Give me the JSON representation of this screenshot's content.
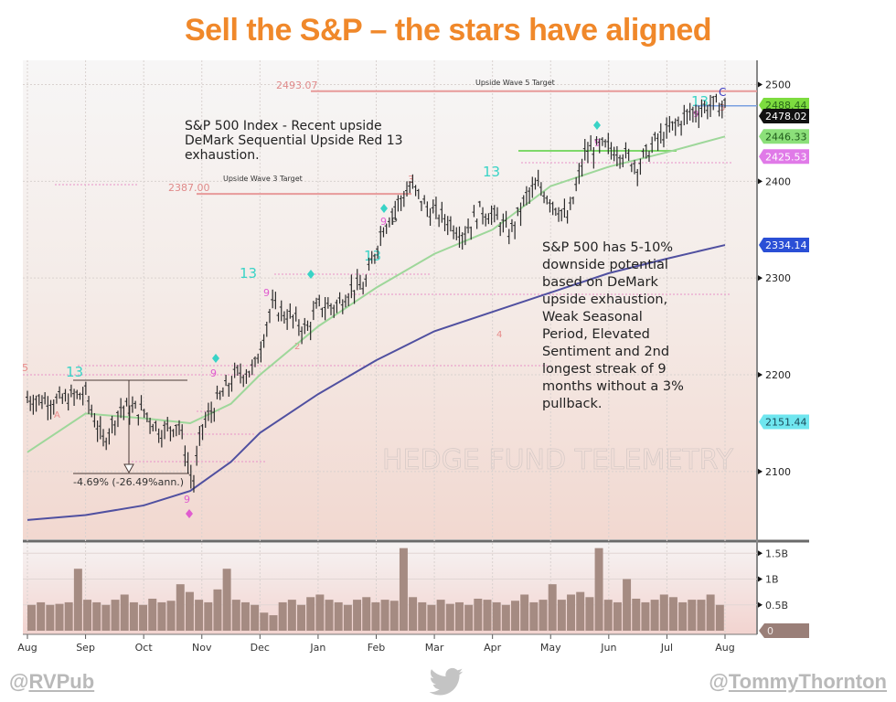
{
  "header": {
    "title": "Sell the S&P – the stars have aligned"
  },
  "footer": {
    "left_handle_prefix": "@",
    "left_handle_name": "RVPub",
    "right_handle_prefix": "@",
    "right_handle_name": "TommyThornton",
    "icon": "twitter-bird-icon"
  },
  "colors": {
    "title": "#f0882a",
    "price_bars": "#2a2a2a",
    "ma_short": "#9ed79a",
    "ma_long": "#5050a0",
    "target_line": "#e79a9a",
    "demark_teal": "#39d3c6",
    "demark_magenta": "#e05ccf"
  },
  "chart_data": {
    "type": "line",
    "title": "S&P 500 Index",
    "watermark": "HEDGE FUND TELEMETRY",
    "x_ticks": [
      "Aug",
      "Sep",
      "Oct",
      "Nov",
      "Dec",
      "Jan",
      "Feb",
      "Mar",
      "Apr",
      "May",
      "Jun",
      "Jul",
      "Aug"
    ],
    "price_axis": {
      "ticks": [
        2100,
        2200,
        2300,
        2400,
        2500
      ],
      "ylim": [
        2030,
        2525
      ]
    },
    "volume_axis": {
      "ticks": [
        "0.5B",
        "1B",
        "1.5B"
      ],
      "tick_values": [
        0.5,
        1.0,
        1.5
      ],
      "ylim": [
        0,
        1.7
      ],
      "zero_label": "0"
    },
    "price_labels": [
      {
        "value": 2488.44,
        "text": "2488.44",
        "color": "#7ddc3f",
        "text_color": "#2a6a1a"
      },
      {
        "value": 2478.02,
        "text": "2478.02",
        "color": "#111111",
        "text_color": "#ffffff"
      },
      {
        "value": 2446.33,
        "text": "2446.33",
        "color": "#8ce07a",
        "text_color": "#1f5a1a"
      },
      {
        "value": 2425.53,
        "text": "2425.53",
        "color": "#e07ae8",
        "text_color": "#ffffff"
      },
      {
        "value": 2334.14,
        "text": "2334.14",
        "color": "#2a4fd6",
        "text_color": "#ffffff"
      },
      {
        "value": 2151.44,
        "text": "2151.44",
        "color": "#6fe6ef",
        "text_color": "#1a4a5a"
      }
    ],
    "targets": [
      {
        "name": "Upside Wave 5 Target",
        "value": 2493.07,
        "text": "2493.07"
      },
      {
        "name": "Upside Wave 3 Target",
        "value": 2387.0,
        "text": "2387.00"
      }
    ],
    "annotations": {
      "top_note": [
        "S&P 500 Index - Recent upside",
        "DeMark Sequential Upside Red 13",
        "exhaustion."
      ],
      "right_note": [
        "S&P 500 has 5-10%",
        "downside potential",
        "based on DeMark",
        "upside exhaustion,",
        "Weak Seasonal",
        "Period, Elevated",
        "Sentiment and 2nd",
        "longest streak of 9",
        "months without a 3%",
        "pullback."
      ],
      "drawdown": "-4.69% (-26.49%ann.)",
      "demark_marks": [
        "13",
        "13",
        "13",
        "13",
        "13",
        "9",
        "9",
        "9",
        "9",
        "9",
        "9",
        "3",
        "5",
        "5",
        "4",
        "2",
        "A",
        "P",
        "C"
      ]
    },
    "series": [
      {
        "name": "S&P 500 price",
        "x_months": [
          0,
          0.5,
          1.0,
          1.3,
          1.6,
          2.0,
          2.3,
          2.6,
          2.85,
          3.0,
          3.3,
          3.6,
          3.9,
          4.2,
          4.5,
          4.8,
          5.0,
          5.3,
          5.6,
          5.8,
          6.1,
          6.3,
          6.6,
          6.9,
          7.2,
          7.5,
          7.8,
          8.1,
          8.3,
          8.6,
          8.8,
          9.0,
          9.3,
          9.6,
          9.9,
          10.2,
          10.5,
          10.8,
          11.1,
          11.4,
          11.6,
          11.8,
          12.0
        ],
        "values": [
          2175,
          2172,
          2180,
          2130,
          2165,
          2162,
          2140,
          2150,
          2085,
          2145,
          2175,
          2200,
          2205,
          2270,
          2260,
          2245,
          2270,
          2270,
          2290,
          2290,
          2350,
          2370,
          2395,
          2370,
          2360,
          2345,
          2370,
          2360,
          2345,
          2385,
          2395,
          2380,
          2360,
          2430,
          2435,
          2430,
          2415,
          2440,
          2455,
          2470,
          2475,
          2478,
          2478.02
        ]
      },
      {
        "name": "Short moving average",
        "x_months": [
          0,
          1,
          2,
          2.8,
          3.5,
          4,
          5,
          6,
          7,
          8,
          9,
          10,
          11,
          12
        ],
        "values": [
          2120,
          2160,
          2155,
          2150,
          2170,
          2200,
          2250,
          2290,
          2325,
          2350,
          2395,
          2415,
          2430,
          2446.33
        ]
      },
      {
        "name": "Long moving average",
        "x_months": [
          0,
          1,
          2,
          2.8,
          3.5,
          4,
          5,
          6,
          7,
          8,
          9,
          10,
          11,
          12
        ],
        "values": [
          2050,
          2055,
          2065,
          2080,
          2110,
          2140,
          2180,
          2215,
          2245,
          2265,
          2285,
          2305,
          2320,
          2334.14
        ]
      },
      {
        "name": "Volume (B)",
        "values": [
          0.5,
          0.55,
          0.5,
          0.52,
          0.55,
          1.2,
          0.6,
          0.55,
          0.5,
          0.6,
          0.7,
          0.55,
          0.5,
          0.62,
          0.55,
          0.58,
          0.9,
          0.75,
          0.6,
          0.55,
          0.8,
          1.2,
          0.6,
          0.55,
          0.5,
          0.35,
          0.3,
          0.55,
          0.6,
          0.5,
          0.65,
          0.7,
          0.6,
          0.55,
          0.5,
          0.6,
          0.65,
          0.55,
          0.6,
          0.58,
          1.6,
          0.65,
          0.55,
          0.5,
          0.6,
          0.52,
          0.55,
          0.5,
          0.62,
          0.6,
          0.55,
          0.5,
          0.58,
          0.7,
          0.55,
          0.6,
          0.9,
          0.6,
          0.7,
          0.75,
          0.65,
          1.6,
          0.6,
          0.55,
          1.0,
          0.62,
          0.55,
          0.6,
          0.7,
          0.65,
          0.55,
          0.6,
          0.6,
          0.7,
          0.5
        ]
      }
    ]
  }
}
